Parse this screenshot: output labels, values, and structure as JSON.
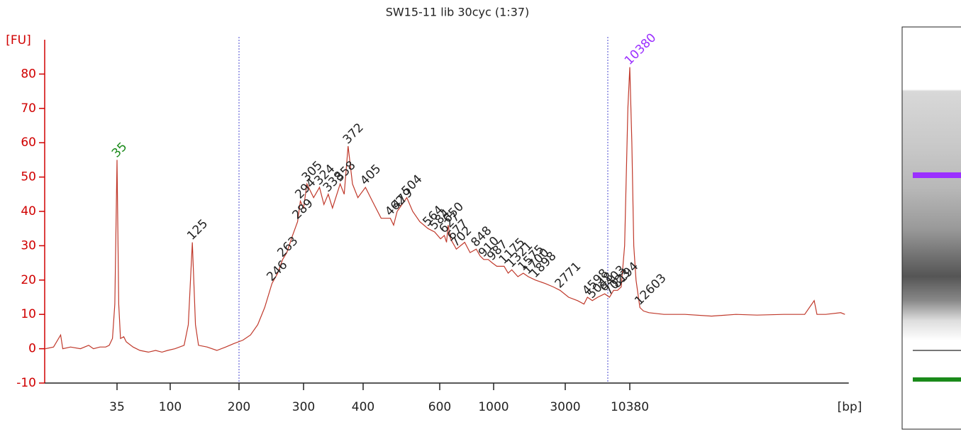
{
  "chart_data": {
    "type": "line",
    "title": "SW15-11 lib 30cyc (1:37)",
    "x_label": "[bp]",
    "y_label": "[FU]",
    "color": "#c0392b",
    "axis_color": "#d00000",
    "x": [
      8.5,
      10,
      11.5,
      12,
      14,
      17,
      20,
      22,
      25,
      28,
      30,
      32,
      33.5,
      35,
      36.2,
      37.5,
      40,
      42,
      48,
      55,
      65,
      75,
      85,
      95,
      105,
      115,
      120,
      125,
      129,
      133,
      145,
      160,
      175,
      190,
      205,
      215,
      225,
      235,
      246,
      255,
      263,
      270,
      280,
      289,
      294,
      300,
      305,
      315,
      324,
      331,
      338,
      345,
      358,
      365,
      372,
      380,
      390,
      405,
      420,
      440,
      462,
      470,
      479,
      504,
      520,
      540,
      564,
      584,
      605,
      627,
      640,
      650,
      665,
      677,
      690,
      702,
      760,
      800,
      848,
      880,
      910,
      950,
      987,
      1050,
      1175,
      1250,
      1321,
      1450,
      1575,
      1700,
      1898,
      2200,
      2500,
      2771,
      3200,
      3800,
      4300,
      4598,
      5048,
      5600,
      6403,
      7023,
      7600,
      8194,
      8800,
      9400,
      10000,
      10380,
      10800,
      11200,
      11700,
      12603,
      13500,
      15000,
      20000,
      30000,
      50000,
      80000,
      120000,
      200000,
      300000,
      360000,
      380000,
      450000,
      600000,
      650000
    ],
    "values": [
      0,
      0.5,
      4,
      0,
      0.5,
      0,
      1,
      0,
      0.5,
      0.5,
      1,
      3,
      13,
      55,
      13,
      3,
      3.5,
      2,
      0.5,
      -0.5,
      -1,
      -0.5,
      -1,
      -0.5,
      0,
      1,
      7,
      31,
      7,
      1,
      0.5,
      -0.5,
      0.5,
      1.5,
      2.5,
      4,
      7,
      12,
      19,
      22,
      26,
      28,
      33,
      37,
      43,
      41,
      48,
      44,
      47,
      42,
      45,
      41,
      48,
      45,
      59,
      48,
      44,
      47,
      43,
      38,
      38,
      36,
      40,
      44,
      40,
      37,
      35,
      34,
      32,
      33,
      31,
      36,
      32,
      31,
      30,
      29,
      31,
      28,
      29,
      27,
      26,
      26,
      25,
      24,
      24,
      22,
      23,
      21,
      22,
      21,
      20,
      19,
      18,
      17,
      15,
      14,
      13,
      15,
      14,
      15,
      16,
      15,
      17,
      17,
      18,
      30,
      70,
      82,
      60,
      30,
      20,
      12,
      11,
      10.5,
      10,
      10,
      9.5,
      10,
      9.8,
      10,
      10,
      14,
      10,
      10,
      10.5,
      10
    ],
    "peaks": [
      {
        "x": 35,
        "y": 55,
        "color": "#1a8a1a"
      },
      {
        "x": 125,
        "y": 31
      },
      {
        "x": 246,
        "y": 19
      },
      {
        "x": 263,
        "y": 26
      },
      {
        "x": 289,
        "y": 37
      },
      {
        "x": 294,
        "y": 43
      },
      {
        "x": 305,
        "y": 48
      },
      {
        "x": 324,
        "y": 47
      },
      {
        "x": 338,
        "y": 45
      },
      {
        "x": 358,
        "y": 48
      },
      {
        "x": 372,
        "y": 59
      },
      {
        "x": 405,
        "y": 47
      },
      {
        "x": 462,
        "y": 38
      },
      {
        "x": 479,
        "y": 40
      },
      {
        "x": 504,
        "y": 44
      },
      {
        "x": 564,
        "y": 35
      },
      {
        "x": 584,
        "y": 34
      },
      {
        "x": 627,
        "y": 33
      },
      {
        "x": 650,
        "y": 36
      },
      {
        "x": 677,
        "y": 31
      },
      {
        "x": 702,
        "y": 29
      },
      {
        "x": 848,
        "y": 29
      },
      {
        "x": 910,
        "y": 26
      },
      {
        "x": 987,
        "y": 25
      },
      {
        "x": 1175,
        "y": 24
      },
      {
        "x": 1321,
        "y": 23
      },
      {
        "x": 1575,
        "y": 22
      },
      {
        "x": 1700,
        "y": 21
      },
      {
        "x": 1898,
        "y": 20
      },
      {
        "x": 2771,
        "y": 17
      },
      {
        "x": 4598,
        "y": 15
      },
      {
        "x": 5048,
        "y": 14
      },
      {
        "x": 6403,
        "y": 16
      },
      {
        "x": 7023,
        "y": 15
      },
      {
        "x": 8194,
        "y": 17
      },
      {
        "x": 10380,
        "y": 82,
        "color": "#9b30ff"
      },
      {
        "x": 12603,
        "y": 12
      }
    ],
    "markers": [
      200,
      6800
    ],
    "marker_color": "#4a4ad0",
    "xlim": [
      8,
      700000
    ],
    "xticks": [
      35,
      100,
      200,
      300,
      400,
      600,
      1000,
      3000,
      10380
    ],
    "ylim": [
      -10,
      90
    ],
    "yticks": [
      -10,
      0,
      10,
      20,
      30,
      40,
      50,
      60,
      70,
      80
    ]
  }
}
